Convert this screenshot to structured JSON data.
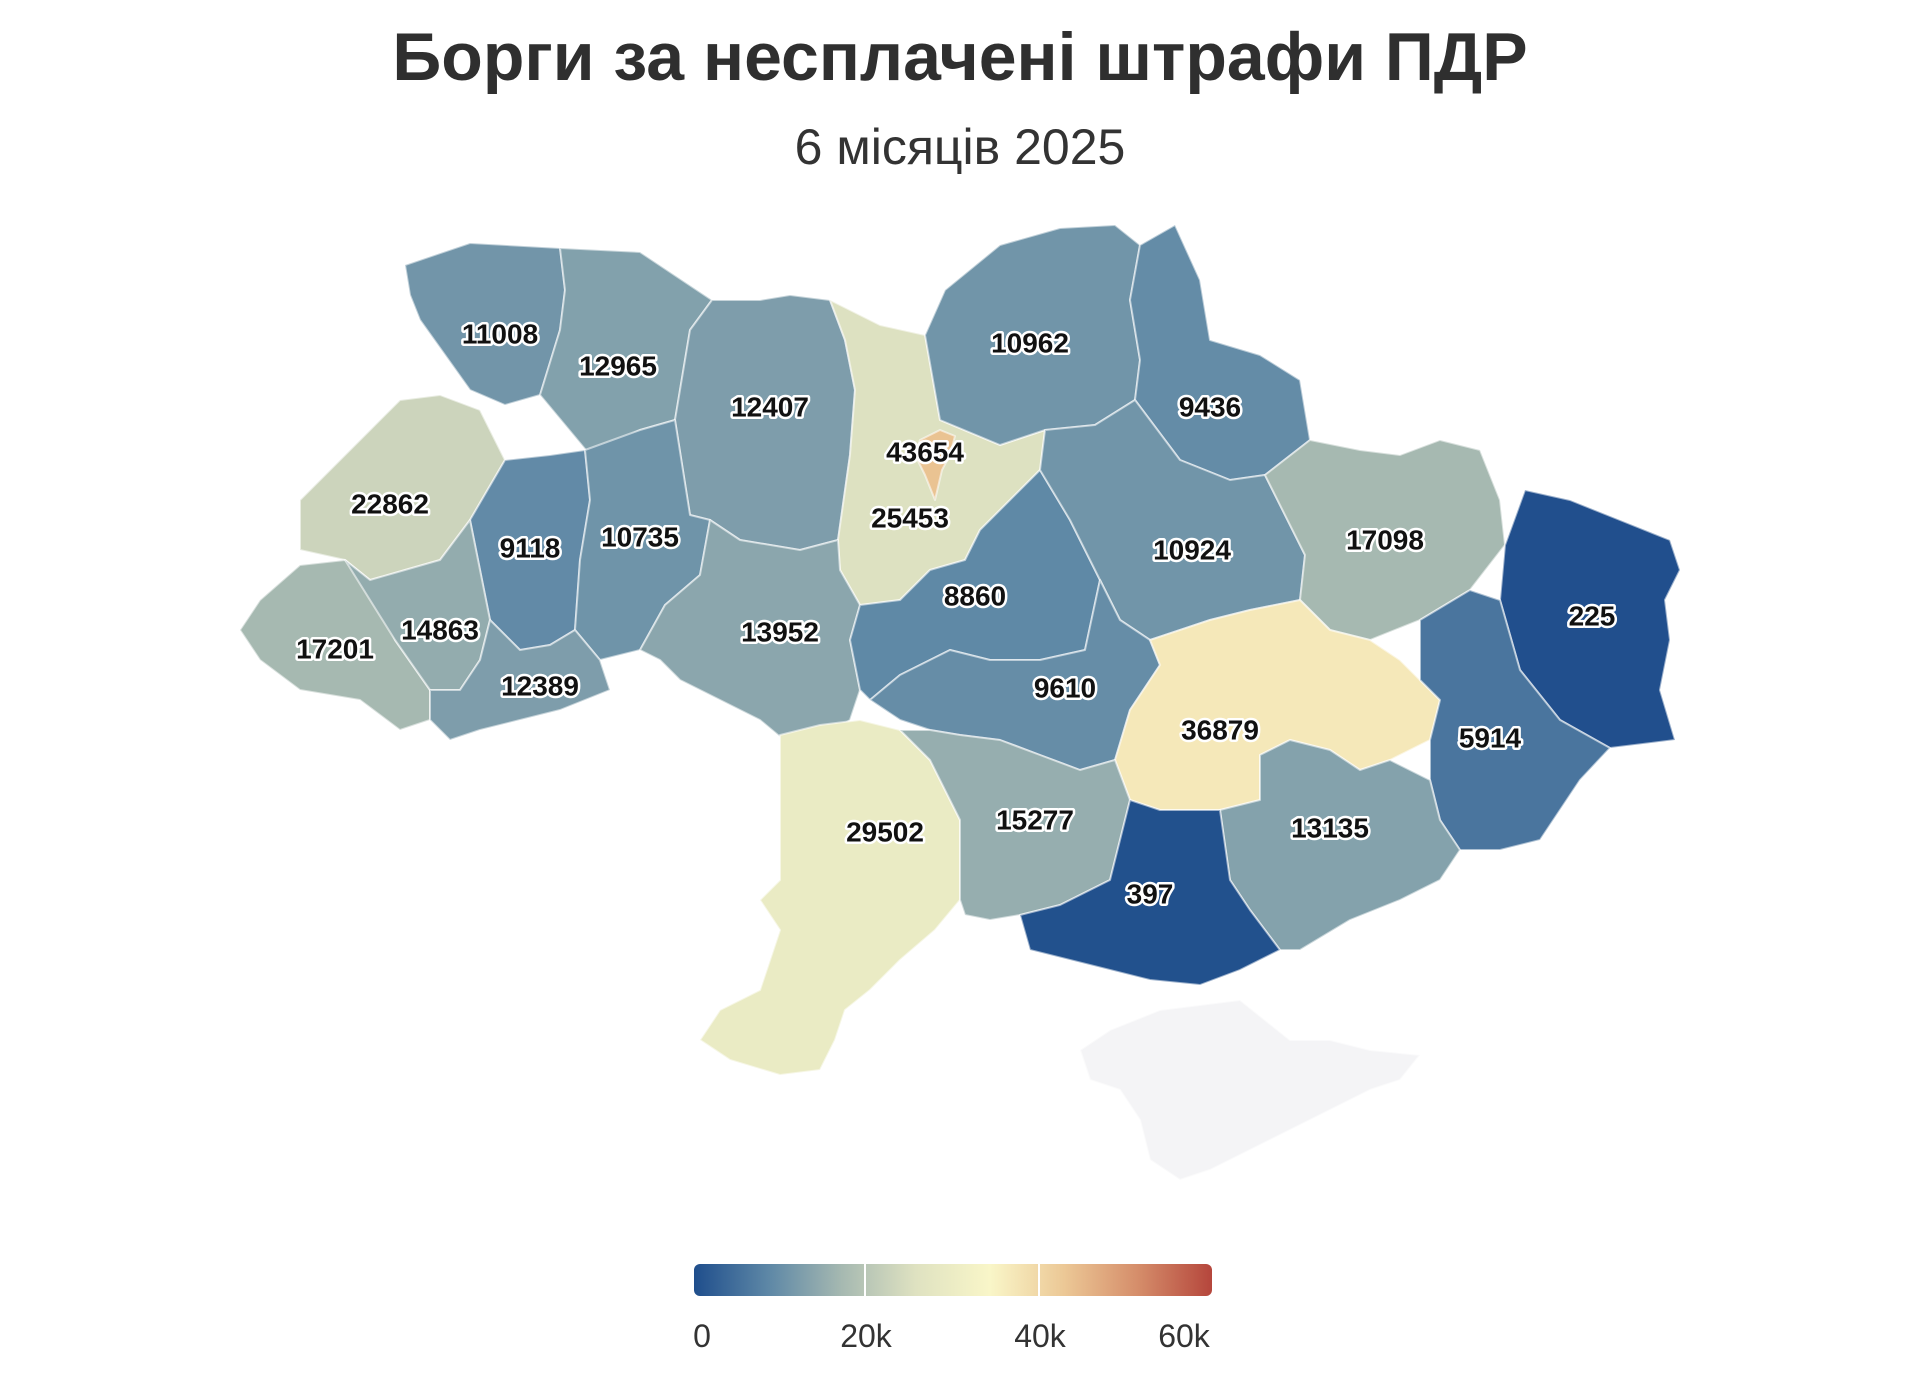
{
  "header": {
    "title": "Борги за несплачені штрафи ПДР",
    "subtitle": "6 місяців 2025"
  },
  "scale": {
    "min": 0,
    "max": 60000,
    "colors": [
      "#1f4e8c",
      "#5d87a6",
      "#a6b9b1",
      "#dfe2c1",
      "#f9f6c8",
      "#ecc896",
      "#d58d6a",
      "#b5463c"
    ],
    "ticks": [
      "0",
      "20k",
      "40k",
      "60k"
    ]
  },
  "regions": [
    {
      "name": "Волинська",
      "value": "11008"
    },
    {
      "name": "Рівненська",
      "value": "12965"
    },
    {
      "name": "Житомирська",
      "value": "12407"
    },
    {
      "name": "м. Київ",
      "value": "43654"
    },
    {
      "name": "Київська",
      "value": "25453"
    },
    {
      "name": "Чернігівська",
      "value": "10962"
    },
    {
      "name": "Сумська",
      "value": "9436"
    },
    {
      "name": "Львівська",
      "value": "22862"
    },
    {
      "name": "Тернопільська",
      "value": "9118"
    },
    {
      "name": "Хмельницька",
      "value": "10735"
    },
    {
      "name": "Вінницька",
      "value": "13952"
    },
    {
      "name": "Черкаська",
      "value": "8860"
    },
    {
      "name": "Полтавська",
      "value": "10924"
    },
    {
      "name": "Харківська",
      "value": "17098"
    },
    {
      "name": "Луганська",
      "value": "225"
    },
    {
      "name": "Закарпатська",
      "value": "17201"
    },
    {
      "name": "Івано-Франківська",
      "value": "14863"
    },
    {
      "name": "Чернівецька",
      "value": "12389"
    },
    {
      "name": "Кіровоградська",
      "value": "9610"
    },
    {
      "name": "Дніпропетровська",
      "value": "36879"
    },
    {
      "name": "Донецька",
      "value": "5914"
    },
    {
      "name": "Одеська",
      "value": "29502"
    },
    {
      "name": "Миколаївська",
      "value": "15277"
    },
    {
      "name": "Запорізька",
      "value": "13135"
    },
    {
      "name": "Херсонська",
      "value": "397"
    },
    {
      "name": "АР Крим",
      "value": ""
    }
  ]
}
